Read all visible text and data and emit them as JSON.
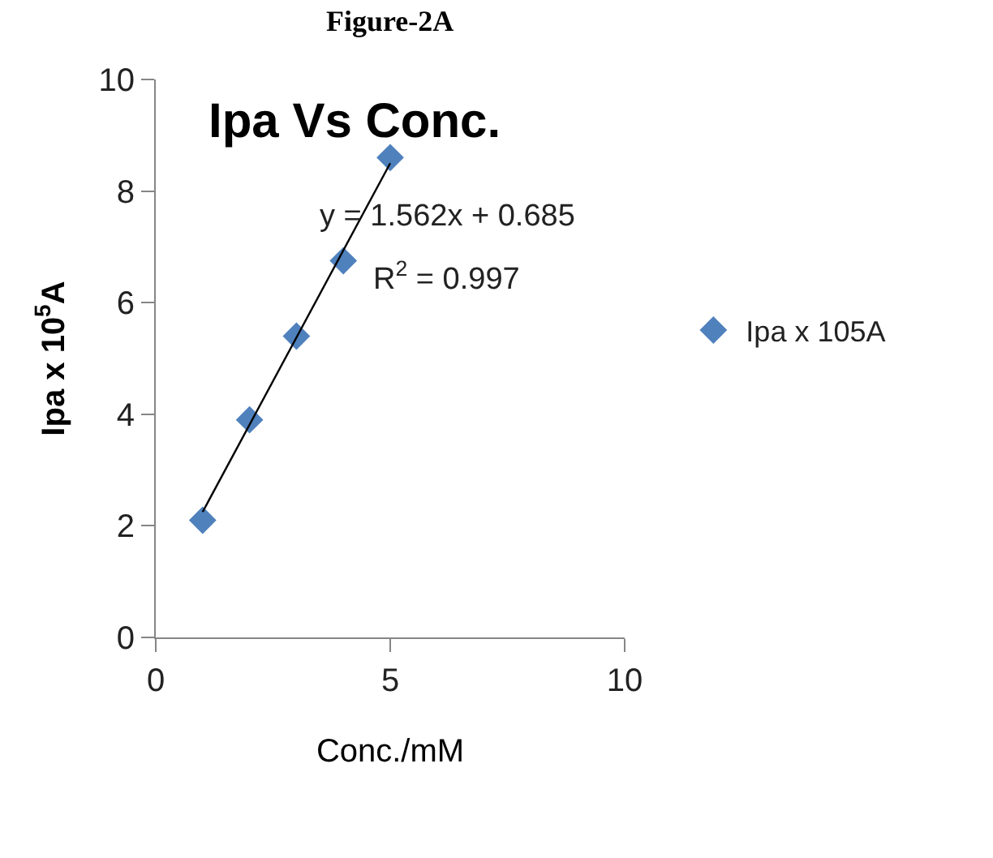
{
  "chart_data": {
    "type": "scatter",
    "title": "Ipa Vs Conc.",
    "xlabel": "Conc./mM",
    "ylabel": "Ipa x 10$^{5}$A",
    "series": [
      {
        "name": "Ipa x 105A",
        "color": "#4f81bd",
        "x": [
          1,
          2,
          3,
          4,
          5
        ],
        "values": [
          2.1,
          3.9,
          5.4,
          6.75,
          8.6
        ],
        "marker": "diamond"
      },
      {
        "type": "line",
        "color": "#000000",
        "x": [
          1,
          5
        ],
        "values": [
          2.25,
          8.5
        ],
        "marker": "none",
        "line_style": "solid"
      }
    ],
    "xlim": [
      0,
      10
    ],
    "xticks": [
      0,
      5,
      10
    ],
    "ylim": [
      0,
      10
    ],
    "yticks": [
      0,
      2,
      4,
      6,
      8,
      10
    ],
    "legend": "right",
    "annotations": [
      "Figure-2A",
      "y = 1.562x + 0.685",
      "R$^{2}$ = 0.997"
    ]
  }
}
